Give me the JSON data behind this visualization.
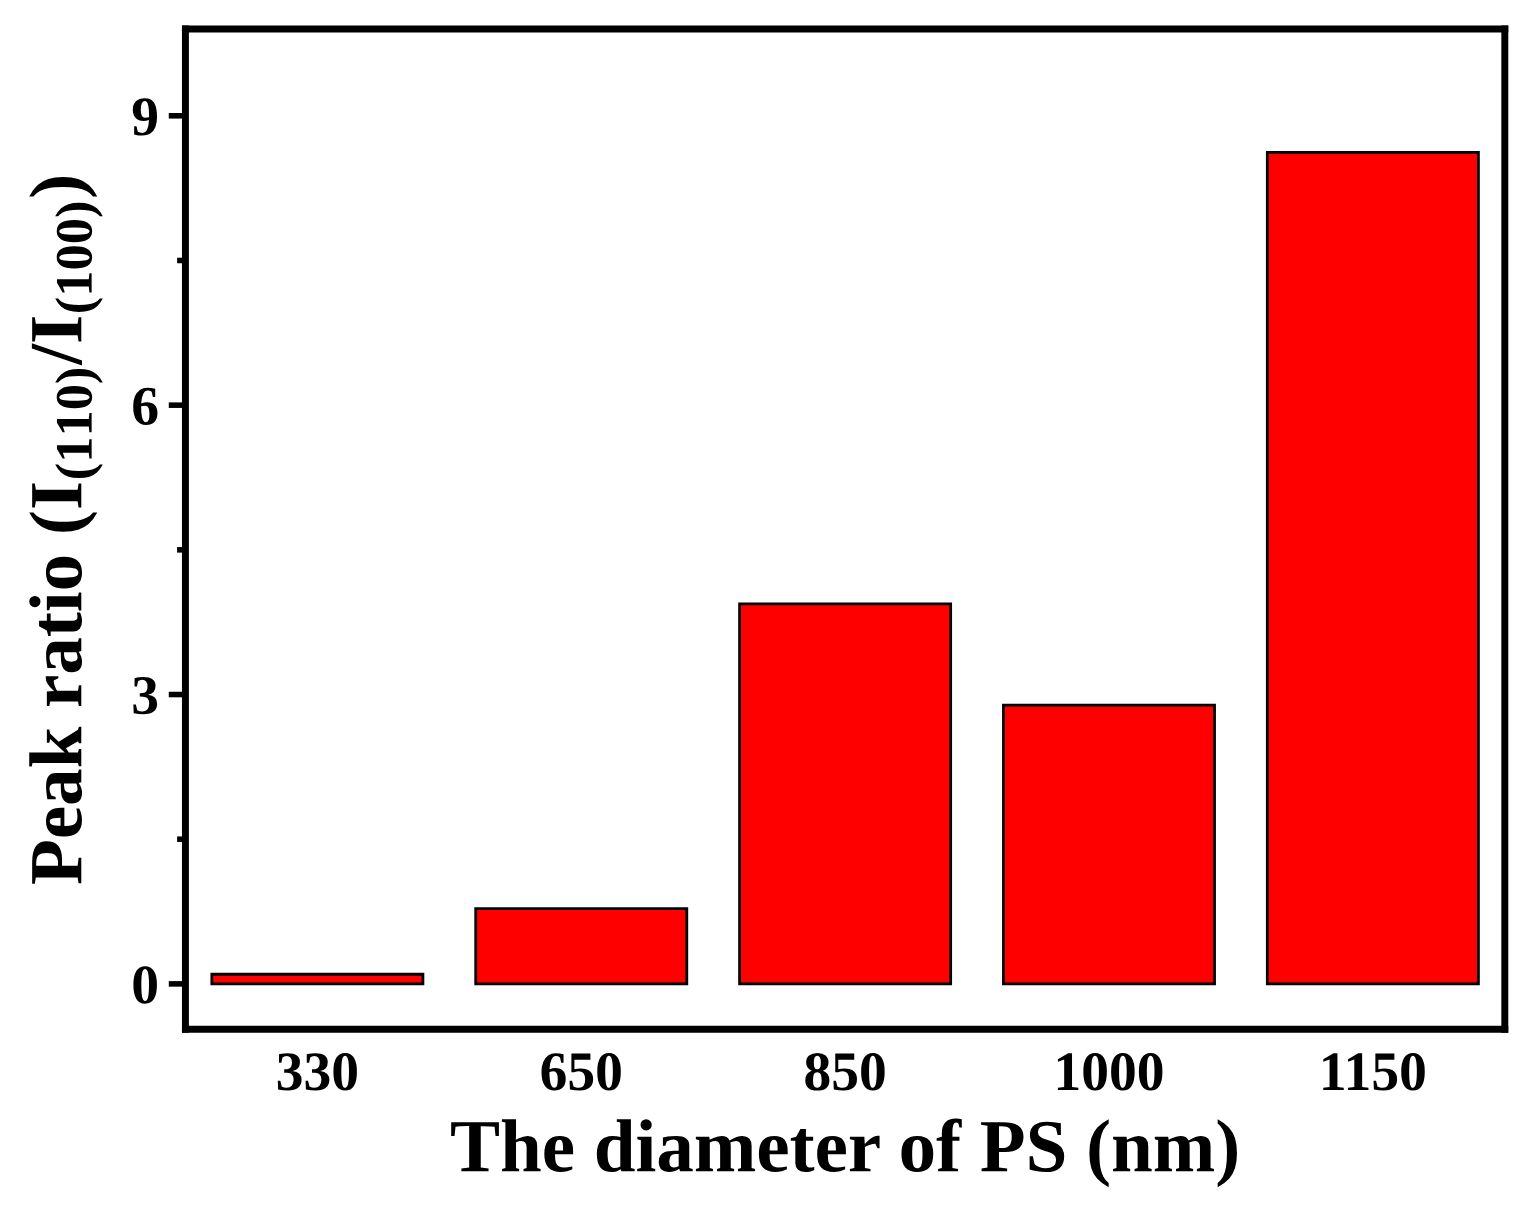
{
  "chart_data": {
    "type": "bar",
    "xlabel": "The diameter of PS (nm)",
    "ylabel": "Peak ratio (I$_{(110)}$/I$_{(100)}$)",
    "categories": [
      "330",
      "650",
      "850",
      "1000",
      "1150"
    ],
    "values": [
      0.1,
      0.78,
      3.94,
      2.89,
      8.62
    ],
    "color": "#fe0000",
    "ylim": [
      -0.47,
      9.9
    ],
    "yticks": [
      0,
      3,
      6,
      9
    ],
    "grid": false
  }
}
